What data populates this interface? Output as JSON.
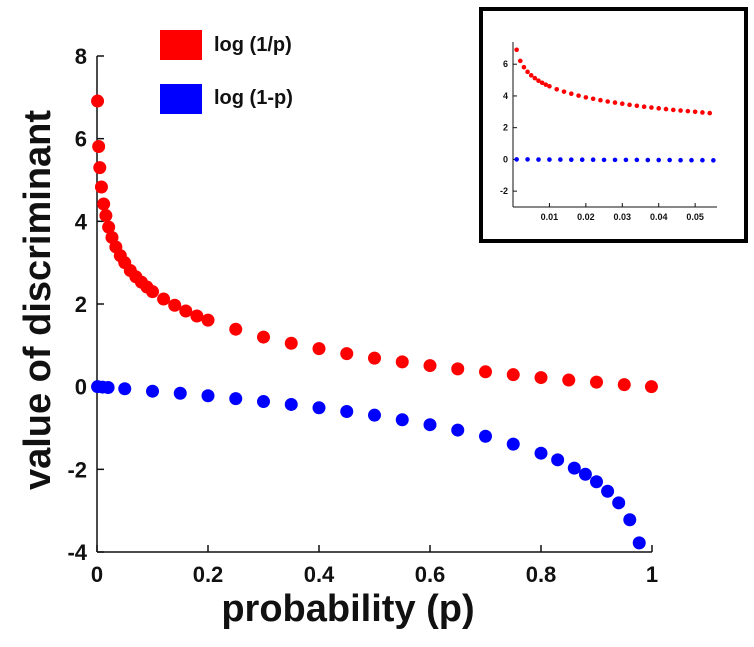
{
  "chart_data": [
    {
      "type": "scatter",
      "name": "main",
      "title": "",
      "xlabel": "probability (p)",
      "ylabel": "value of discriminant",
      "xlim": [
        0,
        1
      ],
      "ylim": [
        -4,
        8
      ],
      "xticks": [
        0,
        0.2,
        0.4,
        0.6,
        0.8,
        1
      ],
      "xtick_labels": [
        "0",
        "0.2",
        "0.4",
        "0.6",
        "0.8",
        "1"
      ],
      "yticks": [
        -4,
        -2,
        0,
        2,
        4,
        6,
        8
      ],
      "ytick_labels": [
        "-4",
        "-2",
        "0",
        "2",
        "4",
        "6",
        "8"
      ],
      "grid": false,
      "legend_position": "top-left",
      "series": [
        {
          "name": "log (1/p)",
          "function": "log(1/p)",
          "color": "#ff0000",
          "x": [
            0.001,
            0.003,
            0.005,
            0.008,
            0.012,
            0.016,
            0.021,
            0.027,
            0.034,
            0.042,
            0.05,
            0.06,
            0.07,
            0.08,
            0.09,
            0.1,
            0.12,
            0.14,
            0.16,
            0.18,
            0.2,
            0.25,
            0.3,
            0.35,
            0.4,
            0.45,
            0.5,
            0.55,
            0.6,
            0.65,
            0.7,
            0.75,
            0.8,
            0.85,
            0.9,
            0.95,
            0.999
          ],
          "values": [
            6.91,
            5.81,
            5.3,
            4.83,
            4.42,
            4.14,
            3.86,
            3.61,
            3.38,
            3.17,
            3.0,
            2.81,
            2.66,
            2.53,
            2.41,
            2.3,
            2.12,
            1.97,
            1.83,
            1.71,
            1.61,
            1.39,
            1.2,
            1.05,
            0.92,
            0.8,
            0.69,
            0.6,
            0.51,
            0.43,
            0.36,
            0.29,
            0.22,
            0.16,
            0.11,
            0.05,
            0.0
          ]
        },
        {
          "name": "log (1-p)",
          "function": "log(1-p)",
          "color": "#0000ff",
          "x": [
            0.001,
            0.01,
            0.02,
            0.05,
            0.1,
            0.15,
            0.2,
            0.25,
            0.3,
            0.35,
            0.4,
            0.45,
            0.5,
            0.55,
            0.6,
            0.65,
            0.7,
            0.75,
            0.8,
            0.83,
            0.86,
            0.88,
            0.9,
            0.92,
            0.94,
            0.96,
            0.977
          ],
          "values": [
            0.0,
            -0.01,
            -0.02,
            -0.05,
            -0.11,
            -0.16,
            -0.22,
            -0.29,
            -0.36,
            -0.43,
            -0.51,
            -0.6,
            -0.69,
            -0.8,
            -0.92,
            -1.05,
            -1.2,
            -1.39,
            -1.61,
            -1.77,
            -1.97,
            -2.12,
            -2.3,
            -2.53,
            -2.81,
            -3.22,
            -3.78
          ]
        }
      ]
    },
    {
      "type": "scatter",
      "name": "inset",
      "title": "",
      "xlabel": "",
      "ylabel": "",
      "xlim": [
        0,
        0.056
      ],
      "ylim": [
        -3,
        7.4
      ],
      "xticks": [
        0.01,
        0.02,
        0.03,
        0.04,
        0.05
      ],
      "xtick_labels": [
        "0.01",
        "0.02",
        "0.03",
        "0.04",
        "0.05"
      ],
      "yticks": [
        -2,
        0,
        2,
        4,
        6
      ],
      "ytick_labels": [
        "-2",
        "0",
        "2",
        "4",
        "6"
      ],
      "grid": false,
      "legend_position": "none",
      "series": [
        {
          "name": "log (1/p)",
          "function": "log(1/p)",
          "color": "#ff0000",
          "x": [
            0.001,
            0.002,
            0.003,
            0.004,
            0.005,
            0.006,
            0.007,
            0.008,
            0.009,
            0.01,
            0.012,
            0.014,
            0.016,
            0.018,
            0.02,
            0.022,
            0.024,
            0.026,
            0.028,
            0.03,
            0.032,
            0.034,
            0.036,
            0.038,
            0.04,
            0.042,
            0.044,
            0.046,
            0.048,
            0.05,
            0.052,
            0.054
          ],
          "values": [
            6.91,
            6.21,
            5.81,
            5.52,
            5.3,
            5.12,
            4.96,
            4.83,
            4.71,
            4.61,
            4.42,
            4.27,
            4.14,
            4.02,
            3.91,
            3.82,
            3.73,
            3.65,
            3.58,
            3.51,
            3.44,
            3.38,
            3.32,
            3.27,
            3.22,
            3.17,
            3.12,
            3.08,
            3.04,
            3.0,
            2.96,
            2.92
          ]
        },
        {
          "name": "log (1-p)",
          "function": "log(1-p)",
          "color": "#0000ff",
          "x": [
            0.001,
            0.004,
            0.007,
            0.01,
            0.013,
            0.016,
            0.019,
            0.022,
            0.025,
            0.028,
            0.031,
            0.034,
            0.037,
            0.04,
            0.043,
            0.046,
            0.049,
            0.052,
            0.055
          ],
          "values": [
            0.0,
            0.0,
            -0.01,
            -0.01,
            -0.01,
            -0.02,
            -0.02,
            -0.02,
            -0.03,
            -0.03,
            -0.03,
            -0.03,
            -0.04,
            -0.04,
            -0.04,
            -0.05,
            -0.05,
            -0.05,
            -0.06
          ]
        }
      ]
    }
  ]
}
